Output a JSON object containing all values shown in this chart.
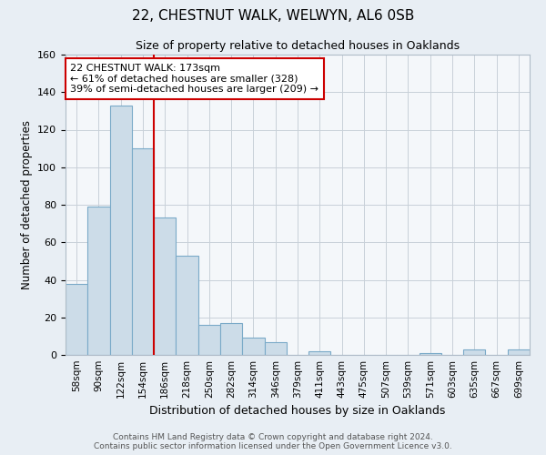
{
  "title": "22, CHESTNUT WALK, WELWYN, AL6 0SB",
  "subtitle": "Size of property relative to detached houses in Oaklands",
  "xlabel": "Distribution of detached houses by size in Oaklands",
  "ylabel": "Number of detached properties",
  "bar_labels": [
    "58sqm",
    "90sqm",
    "122sqm",
    "154sqm",
    "186sqm",
    "218sqm",
    "250sqm",
    "282sqm",
    "314sqm",
    "346sqm",
    "379sqm",
    "411sqm",
    "443sqm",
    "475sqm",
    "507sqm",
    "539sqm",
    "571sqm",
    "603sqm",
    "635sqm",
    "667sqm",
    "699sqm"
  ],
  "bar_values": [
    38,
    79,
    133,
    110,
    73,
    53,
    16,
    17,
    9,
    7,
    0,
    2,
    0,
    0,
    0,
    0,
    1,
    0,
    3,
    0,
    3
  ],
  "bar_color": "#ccdce8",
  "bar_edge_color": "#7aaac8",
  "ylim": [
    0,
    160
  ],
  "yticks": [
    0,
    20,
    40,
    60,
    80,
    100,
    120,
    140,
    160
  ],
  "property_line_color": "#cc0000",
  "annotation_title": "22 CHESTNUT WALK: 173sqm",
  "annotation_line1": "← 61% of detached houses are smaller (328)",
  "annotation_line2": "39% of semi-detached houses are larger (209) →",
  "annotation_box_color": "#cc0000",
  "footer_line1": "Contains HM Land Registry data © Crown copyright and database right 2024.",
  "footer_line2": "Contains public sector information licensed under the Open Government Licence v3.0.",
  "background_color": "#e8eef4",
  "plot_background_color": "#f4f7fa",
  "grid_color": "#c8d0d8"
}
